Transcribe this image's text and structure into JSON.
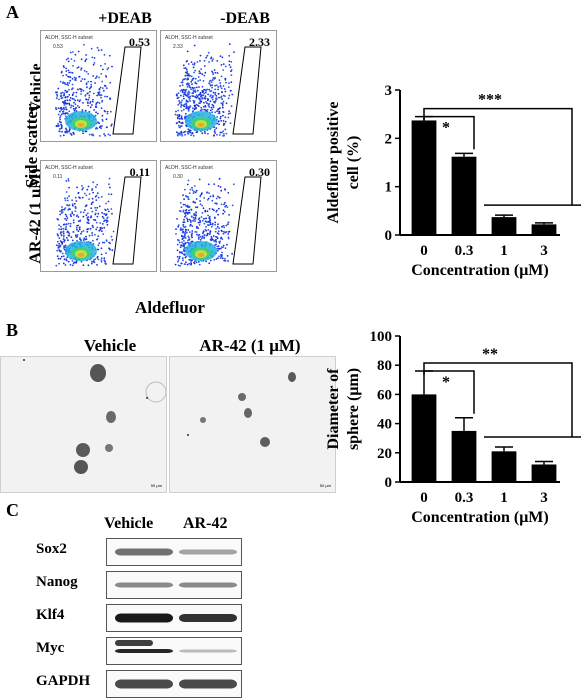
{
  "panels": {
    "a": "A",
    "b": "B",
    "c": "C"
  },
  "facs": {
    "col_headers": [
      "+DEAB",
      "-DEAB"
    ],
    "row_labels": [
      "Vehicle",
      "AR-42 (1 μM)"
    ],
    "y_axis_label": "Side scatter",
    "x_axis_label": "Aldefluor",
    "gate_label": "ALDH, SSC-H subset",
    "cells": [
      {
        "small": "0.53",
        "big": "0.53"
      },
      {
        "small": "2.33",
        "big": "2.33"
      },
      {
        "small": "0.11",
        "big": "0.11"
      },
      {
        "small": "0.30",
        "big": "0.30"
      }
    ]
  },
  "sphere": {
    "labels": [
      "Vehicle",
      "AR-42 (1 μM)"
    ],
    "scale_label": "50 μm"
  },
  "western": {
    "col_headers": [
      "Vehicle",
      "AR-42"
    ],
    "proteins": [
      "Sox2",
      "Nanog",
      "Klf4",
      "Myc",
      "GAPDH"
    ]
  },
  "chart_data": [
    {
      "type": "bar",
      "categories": [
        "0",
        "0.3",
        "1",
        "3"
      ],
      "values": [
        2.37,
        1.62,
        0.37,
        0.22
      ],
      "errors": [
        0.08,
        0.07,
        0.04,
        0.03
      ],
      "ylabel_lines": [
        "Aldefluor positive",
        "cell (%)"
      ],
      "xlabel": "Concentration (μM)",
      "ylim": [
        0,
        3
      ],
      "yticks": [
        "0",
        "1",
        "2",
        "3"
      ],
      "significance": [
        "*",
        "***"
      ],
      "bar_color": "#000000"
    },
    {
      "type": "bar",
      "categories": [
        "0",
        "0.3",
        "1",
        "3"
      ],
      "values": [
        60,
        35,
        21,
        12
      ],
      "errors": [
        16,
        9,
        3,
        2
      ],
      "ylabel_lines": [
        "Diameter of",
        "sphere (μm)"
      ],
      "xlabel": "Concentration (μM)",
      "ylim": [
        0,
        100
      ],
      "yticks": [
        "0",
        "20",
        "40",
        "60",
        "80",
        "100"
      ],
      "significance": [
        "*",
        "**"
      ],
      "bar_color": "#000000"
    }
  ]
}
